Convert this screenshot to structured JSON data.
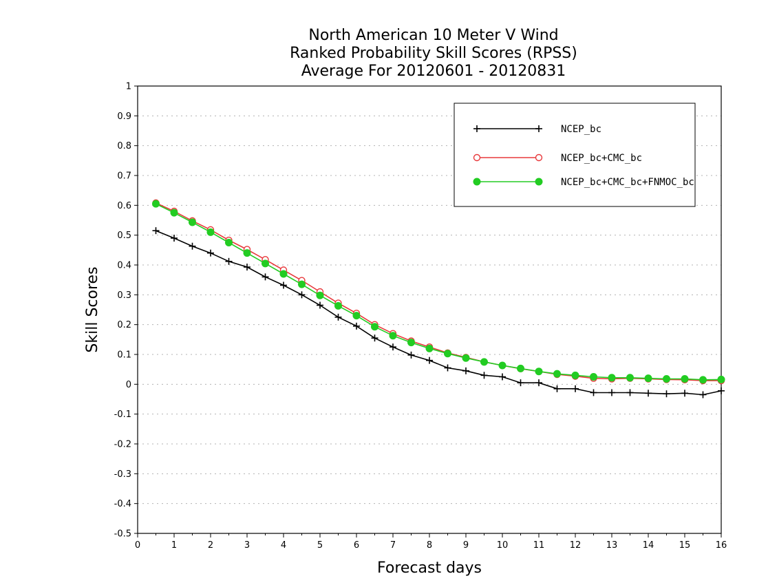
{
  "chart_data": {
    "type": "line",
    "title": [
      "North American 10 Meter V Wind",
      "Ranked Probability Skill Scores (RPSS)",
      "Average For 20120601 - 20120831"
    ],
    "xlabel": "Forecast days",
    "ylabel": "Skill Scores",
    "xlim": [
      0,
      16
    ],
    "ylim": [
      -0.5,
      1
    ],
    "xticks": [
      0,
      1,
      2,
      3,
      4,
      5,
      6,
      7,
      8,
      9,
      10,
      11,
      12,
      13,
      14,
      15,
      16
    ],
    "yticks": [
      -0.5,
      -0.4,
      -0.3,
      -0.2,
      -0.1,
      0,
      0.1,
      0.2,
      0.3,
      0.4,
      0.5,
      0.6,
      0.7,
      0.8,
      0.9,
      1
    ],
    "ytick_labels": [
      "-0.5",
      "-0.4",
      "-0.3",
      "-0.2",
      "-0.1",
      "0",
      "0.1",
      "0.2",
      "0.3",
      "0.4",
      "0.5",
      "0.6",
      "0.7",
      "0.8",
      "0.9",
      "1"
    ],
    "grid": true,
    "legend_position": "top-right",
    "x": [
      0.5,
      1,
      1.5,
      2,
      2.5,
      3,
      3.5,
      4,
      4.5,
      5,
      5.5,
      6,
      6.5,
      7,
      7.5,
      8,
      8.5,
      9,
      9.5,
      10,
      10.5,
      11,
      11.5,
      12,
      12.5,
      13,
      13.5,
      14,
      14.5,
      15,
      15.5,
      16
    ],
    "series": [
      {
        "name": "NCEP_bc",
        "color": "#000000",
        "marker": "plus",
        "values": [
          0.515,
          0.49,
          0.463,
          0.44,
          0.412,
          0.393,
          0.36,
          0.332,
          0.3,
          0.265,
          0.225,
          0.195,
          0.155,
          0.125,
          0.098,
          0.08,
          0.055,
          0.045,
          0.03,
          0.025,
          0.005,
          0.005,
          -0.015,
          -0.015,
          -0.028,
          -0.028,
          -0.028,
          -0.03,
          -0.032,
          -0.03,
          -0.035,
          -0.022
        ]
      },
      {
        "name": "NCEP_bc+CMC_bc",
        "color": "#e8383b",
        "marker": "open-circle",
        "values": [
          0.608,
          0.58,
          0.548,
          0.518,
          0.483,
          0.452,
          0.418,
          0.383,
          0.348,
          0.31,
          0.272,
          0.238,
          0.2,
          0.17,
          0.145,
          0.125,
          0.105,
          0.09,
          0.075,
          0.063,
          0.052,
          0.043,
          0.033,
          0.027,
          0.02,
          0.018,
          0.02,
          0.018,
          0.016,
          0.015,
          0.012,
          0.012
        ]
      },
      {
        "name": "NCEP_bc+CMC_bc+FNMOC_bc",
        "color": "#22cc22",
        "marker": "filled-circle",
        "values": [
          0.605,
          0.575,
          0.543,
          0.51,
          0.475,
          0.44,
          0.405,
          0.37,
          0.335,
          0.298,
          0.263,
          0.23,
          0.193,
          0.163,
          0.14,
          0.12,
          0.103,
          0.088,
          0.075,
          0.063,
          0.053,
          0.043,
          0.035,
          0.03,
          0.025,
          0.022,
          0.022,
          0.02,
          0.018,
          0.018,
          0.015,
          0.016
        ]
      }
    ]
  }
}
